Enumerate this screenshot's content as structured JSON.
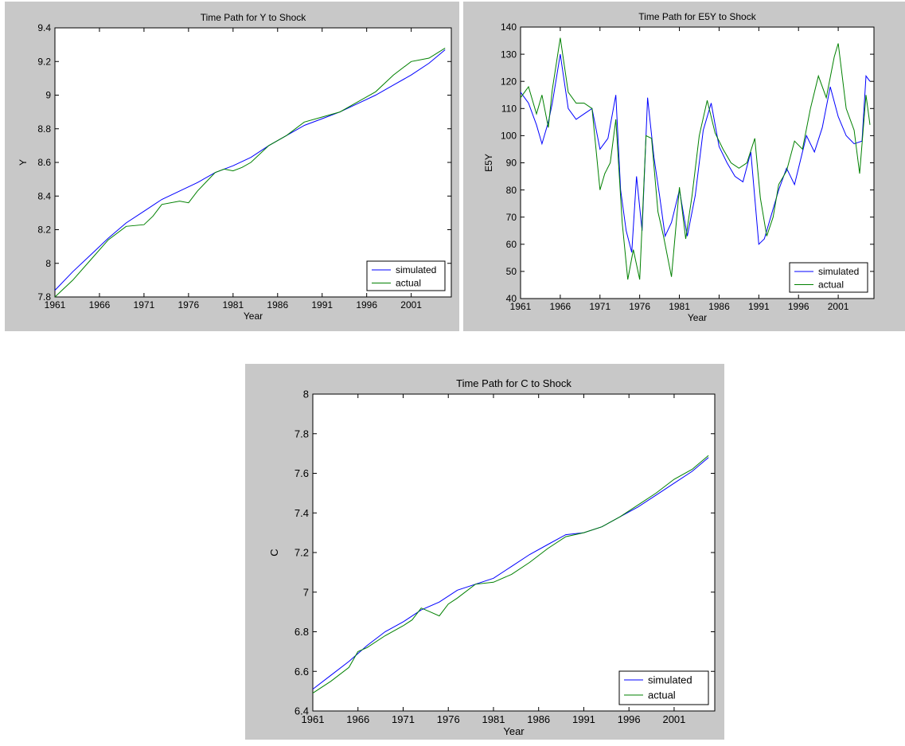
{
  "colors": {
    "simulated": "#0000ff",
    "actual": "#008000",
    "figure_bg": "#c8c8c8",
    "plot_bg": "#ffffff"
  },
  "chart_data": [
    {
      "type": "line",
      "title": "Time Path for Y to Shock",
      "xlabel": "Year",
      "ylabel": "Y",
      "xlim": [
        1961,
        2005.5
      ],
      "ylim": [
        7.8,
        9.4
      ],
      "xticks": [
        1961,
        1966,
        1971,
        1976,
        1981,
        1986,
        1991,
        1996,
        2001
      ],
      "yticks": [
        7.8,
        8,
        8.2,
        8.4,
        8.6,
        8.8,
        9,
        9.2,
        9.4
      ],
      "legend": "bottom-right",
      "grid": false,
      "series": [
        {
          "name": "simulated",
          "color": "#0000ff",
          "x": [
            1961,
            1963,
            1965,
            1967,
            1969,
            1971,
            1973,
            1975,
            1977,
            1979,
            1981,
            1983,
            1985,
            1987,
            1989,
            1991,
            1993,
            1995,
            1997,
            1999,
            2001,
            2003,
            2004.8
          ],
          "y": [
            7.84,
            7.95,
            8.05,
            8.15,
            8.24,
            8.31,
            8.38,
            8.43,
            8.48,
            8.54,
            8.58,
            8.63,
            8.7,
            8.76,
            8.82,
            8.86,
            8.9,
            8.95,
            9.0,
            9.06,
            9.12,
            9.19,
            9.27
          ]
        },
        {
          "name": "actual",
          "color": "#008000",
          "x": [
            1961,
            1963,
            1965,
            1967,
            1969,
            1971,
            1972,
            1973,
            1975,
            1976,
            1977,
            1979,
            1980,
            1981,
            1982,
            1983,
            1985,
            1987,
            1989,
            1991,
            1993,
            1995,
            1997,
            1999,
            2001,
            2003,
            2004.8
          ],
          "y": [
            7.8,
            7.9,
            8.02,
            8.14,
            8.22,
            8.23,
            8.28,
            8.35,
            8.37,
            8.36,
            8.43,
            8.54,
            8.56,
            8.55,
            8.57,
            8.6,
            8.7,
            8.76,
            8.84,
            8.87,
            8.9,
            8.96,
            9.02,
            9.12,
            9.2,
            9.22,
            9.28
          ]
        }
      ]
    },
    {
      "type": "line",
      "title": "Time Path for E5Y to Shock",
      "xlabel": "Year",
      "ylabel": "E5Y",
      "xlim": [
        1961,
        2005.5
      ],
      "ylim": [
        40,
        140
      ],
      "xticks": [
        1961,
        1966,
        1971,
        1976,
        1981,
        1986,
        1991,
        1996,
        2001
      ],
      "yticks": [
        40,
        50,
        60,
        70,
        80,
        90,
        100,
        110,
        120,
        130,
        140
      ],
      "legend": "bottom-right",
      "grid": false,
      "series": [
        {
          "name": "simulated",
          "color": "#0000ff",
          "x": [
            1961,
            1962,
            1963,
            1963.7,
            1964.5,
            1965,
            1966,
            1967,
            1968,
            1969,
            1970,
            1971,
            1972,
            1973,
            1973.6,
            1974.3,
            1975,
            1975.6,
            1976.3,
            1977,
            1977.8,
            1978.5,
            1979.2,
            1980,
            1981,
            1982,
            1983,
            1984,
            1985,
            1986,
            1987,
            1988,
            1989,
            1990,
            1991,
            1991.7,
            1992.5,
            1993.5,
            1994.5,
            1995.5,
            1997,
            1998,
            1999,
            2000,
            2001,
            2002,
            2003,
            2004,
            2004.5,
            2005
          ],
          "y": [
            116,
            112,
            104,
            97,
            105,
            112,
            130,
            110,
            106,
            108,
            110,
            95,
            99,
            115,
            80,
            65,
            57,
            85,
            65,
            114,
            92,
            78,
            63,
            68,
            80,
            63,
            78,
            102,
            112,
            96,
            90,
            85,
            83,
            94,
            60,
            62,
            70,
            80,
            88,
            82,
            100,
            94,
            103,
            118,
            107,
            100,
            97,
            98,
            122,
            120
          ]
        },
        {
          "name": "actual",
          "color": "#008000",
          "x": [
            1961,
            1962,
            1963,
            1963.7,
            1964.5,
            1965,
            1966,
            1967,
            1968,
            1969,
            1970,
            1971,
            1971.6,
            1972.3,
            1973,
            1973.8,
            1974.5,
            1975.2,
            1976,
            1976.8,
            1977.5,
            1978.3,
            1979,
            1980,
            1981,
            1981.8,
            1982.6,
            1983.5,
            1984.5,
            1985.5,
            1986.5,
            1987.5,
            1988.5,
            1989.5,
            1990.5,
            1991.2,
            1992,
            1992.8,
            1993.5,
            1994.5,
            1995.5,
            1996.5,
            1997.5,
            1998.5,
            1999.5,
            2000.5,
            2001,
            2002,
            2003,
            2003.7,
            2004.5,
            2005
          ],
          "y": [
            114,
            118,
            108,
            115,
            103,
            117,
            136,
            116,
            112,
            112,
            110,
            80,
            86,
            90,
            106,
            68,
            47,
            58,
            47,
            100,
            99,
            72,
            63,
            48,
            81,
            62,
            78,
            100,
            113,
            101,
            95,
            90,
            88,
            90,
            99,
            77,
            63,
            70,
            82,
            87,
            98,
            95,
            110,
            122,
            114,
            129,
            134,
            110,
            102,
            86,
            115,
            104
          ]
        }
      ]
    },
    {
      "type": "line",
      "title": "Time Path for C to Shock",
      "xlabel": "Year",
      "ylabel": "C",
      "xlim": [
        1961,
        2005.5
      ],
      "ylim": [
        6.4,
        8
      ],
      "xticks": [
        1961,
        1966,
        1971,
        1976,
        1981,
        1986,
        1991,
        1996,
        2001
      ],
      "yticks": [
        6.4,
        6.6,
        6.8,
        7,
        7.2,
        7.4,
        7.6,
        7.8,
        8
      ],
      "legend": "bottom-right",
      "grid": false,
      "series": [
        {
          "name": "simulated",
          "color": "#0000ff",
          "x": [
            1961,
            1963,
            1965,
            1967,
            1969,
            1971,
            1973,
            1975,
            1977,
            1979,
            1981,
            1983,
            1985,
            1987,
            1989,
            1991,
            1993,
            1995,
            1997,
            1999,
            2001,
            2003,
            2004.8
          ],
          "y": [
            6.51,
            6.58,
            6.65,
            6.73,
            6.8,
            6.85,
            6.91,
            6.95,
            7.01,
            7.04,
            7.07,
            7.13,
            7.19,
            7.24,
            7.29,
            7.3,
            7.33,
            7.38,
            7.43,
            7.49,
            7.55,
            7.61,
            7.68
          ]
        },
        {
          "name": "actual",
          "color": "#008000",
          "x": [
            1961,
            1963,
            1965,
            1966,
            1967,
            1969,
            1971,
            1972,
            1973,
            1974,
            1975,
            1976,
            1977,
            1979,
            1981,
            1983,
            1985,
            1987,
            1989,
            1991,
            1993,
            1995,
            1997,
            1999,
            2001,
            2003,
            2004.8
          ],
          "y": [
            6.49,
            6.55,
            6.62,
            6.7,
            6.72,
            6.78,
            6.83,
            6.86,
            6.92,
            6.9,
            6.88,
            6.94,
            6.97,
            7.04,
            7.05,
            7.09,
            7.15,
            7.22,
            7.28,
            7.3,
            7.33,
            7.38,
            7.44,
            7.5,
            7.57,
            7.62,
            7.69
          ]
        }
      ]
    }
  ]
}
